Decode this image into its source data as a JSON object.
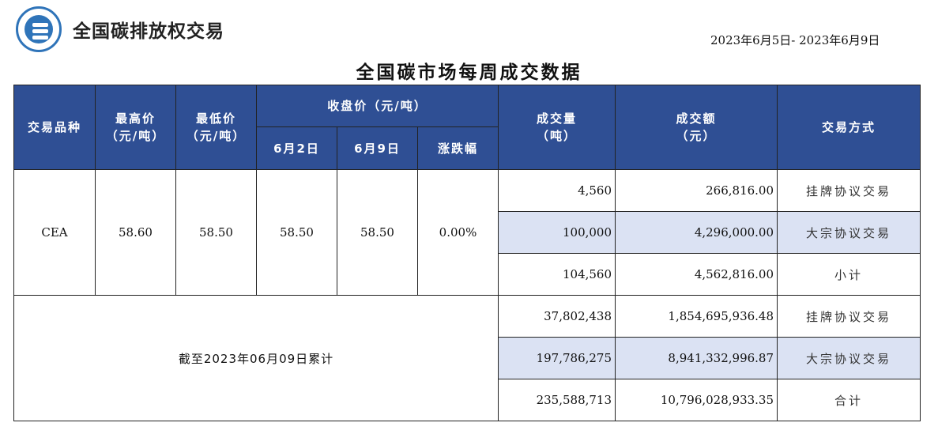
{
  "brand": "全国碳排放权交易",
  "date_range": "2023年6月5日- 2023年6月9日",
  "title": "全国碳市场每周成交数据",
  "headers": {
    "product": "交易品种",
    "high": "最高价",
    "high_unit": "（元/吨）",
    "low": "最低价",
    "low_unit": "（元/吨）",
    "close": "收盘价（元/吨）",
    "close_d1": "6月2日",
    "close_d2": "6月9日",
    "change": "涨跌幅",
    "volume": "成交量",
    "volume_unit": "（吨）",
    "amount": "成交额",
    "amount_unit": "（元）",
    "method": "交易方式"
  },
  "weekly": {
    "product": "CEA",
    "high": "58.60",
    "low": "58.50",
    "close_d1": "58.50",
    "close_d2": "58.50",
    "change": "0.00%",
    "rows": [
      {
        "volume": "4,560",
        "amount": "266,816.00",
        "method": "挂牌协议交易"
      },
      {
        "volume": "100,000",
        "amount": "4,296,000.00",
        "method": "大宗协议交易"
      },
      {
        "volume": "104,560",
        "amount": "4,562,816.00",
        "method": "小计"
      }
    ]
  },
  "cumulative": {
    "label": "截至2023年06月09日累计",
    "rows": [
      {
        "volume": "37,802,438",
        "amount": "1,854,695,936.48",
        "method": "挂牌协议交易"
      },
      {
        "volume": "197,786,275",
        "amount": "8,941,332,996.87",
        "method": "大宗协议交易"
      },
      {
        "volume": "235,588,713",
        "amount": "10,796,028,933.35",
        "method": "合计"
      }
    ]
  }
}
